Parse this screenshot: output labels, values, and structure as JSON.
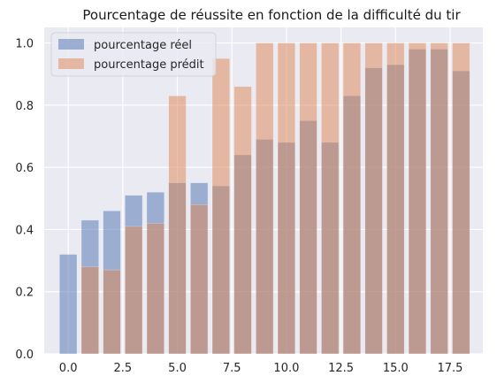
{
  "chart_data": {
    "type": "bar",
    "title": "Pourcentage de réussite en fonction de la difficulté du tir",
    "xlabel": "",
    "ylabel": "",
    "xlim": [
      -1.1,
      19.0
    ],
    "ylim": [
      0,
      1.05
    ],
    "xticks": [
      0.0,
      2.5,
      5.0,
      7.5,
      10.0,
      12.5,
      15.0,
      17.5
    ],
    "xtick_labels": [
      "0.0",
      "2.5",
      "5.0",
      "7.5",
      "10.0",
      "12.5",
      "15.0",
      "17.5"
    ],
    "yticks": [
      0.0,
      0.2,
      0.4,
      0.6,
      0.8,
      1.0
    ],
    "ytick_labels": [
      "0.0",
      "0.2",
      "0.4",
      "0.6",
      "0.8",
      "1.0"
    ],
    "grid": true,
    "legend_position": "top-left",
    "bar_width": 0.8,
    "x": [
      0,
      1,
      2,
      3,
      4,
      5,
      6,
      7,
      8,
      9,
      10,
      11,
      12,
      13,
      14,
      15,
      16,
      17,
      18
    ],
    "series": [
      {
        "name": "pourcentage réel",
        "color": "#4c72b0",
        "values": [
          0.32,
          0.43,
          0.46,
          0.51,
          0.52,
          0.55,
          0.55,
          0.54,
          0.64,
          0.69,
          0.68,
          0.75,
          0.68,
          0.83,
          0.92,
          0.93,
          0.98,
          0.98,
          0.91
        ]
      },
      {
        "name": "pourcentage prédit",
        "color": "#dd8452",
        "values": [
          null,
          0.28,
          0.27,
          0.41,
          0.42,
          0.83,
          0.48,
          0.95,
          0.86,
          1.0,
          1.0,
          1.0,
          1.0,
          1.0,
          1.0,
          1.0,
          1.0,
          1.0,
          1.0
        ]
      }
    ]
  }
}
